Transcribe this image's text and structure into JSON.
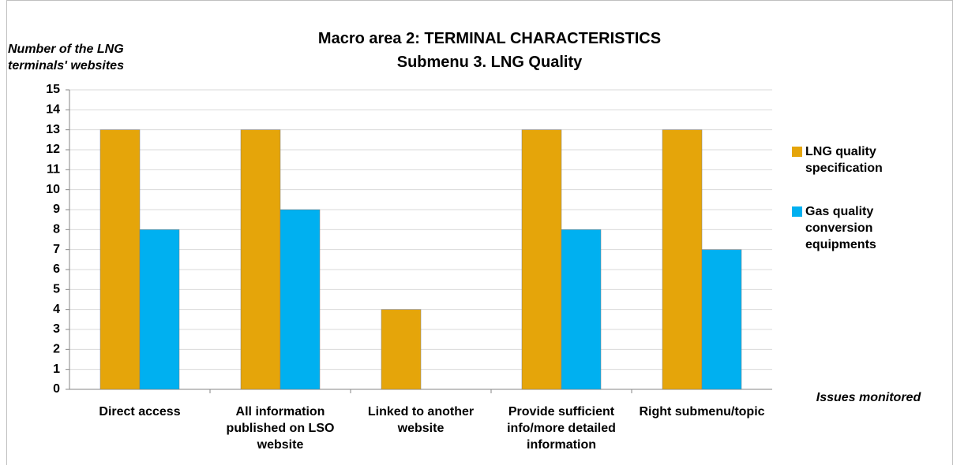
{
  "chart_data": {
    "type": "bar",
    "title": "Macro area 2: TERMINAL CHARACTERISTICS",
    "subtitle": "Submenu 3. LNG Quality",
    "y_label": "Number of the LNG terminals' websites",
    "x_label": "Issues monitored",
    "categories": [
      "Direct access",
      "All information published on LSO website",
      "Linked to another website",
      "Provide sufficient info/more detailed information",
      "Right submenu/topic"
    ],
    "series": [
      {
        "name": "LNG quality specification",
        "color": "#e5a50a",
        "values": [
          13,
          13,
          4,
          13,
          13
        ]
      },
      {
        "name": "Gas quality conversion equipments",
        "color": "#00b0f0",
        "values": [
          8,
          9,
          0,
          8,
          7
        ]
      }
    ],
    "ylim": [
      0,
      15
    ],
    "yticks": [
      0,
      1,
      2,
      3,
      4,
      5,
      6,
      7,
      8,
      9,
      10,
      11,
      12,
      13,
      14,
      15
    ],
    "grid": true,
    "legend": "right"
  }
}
